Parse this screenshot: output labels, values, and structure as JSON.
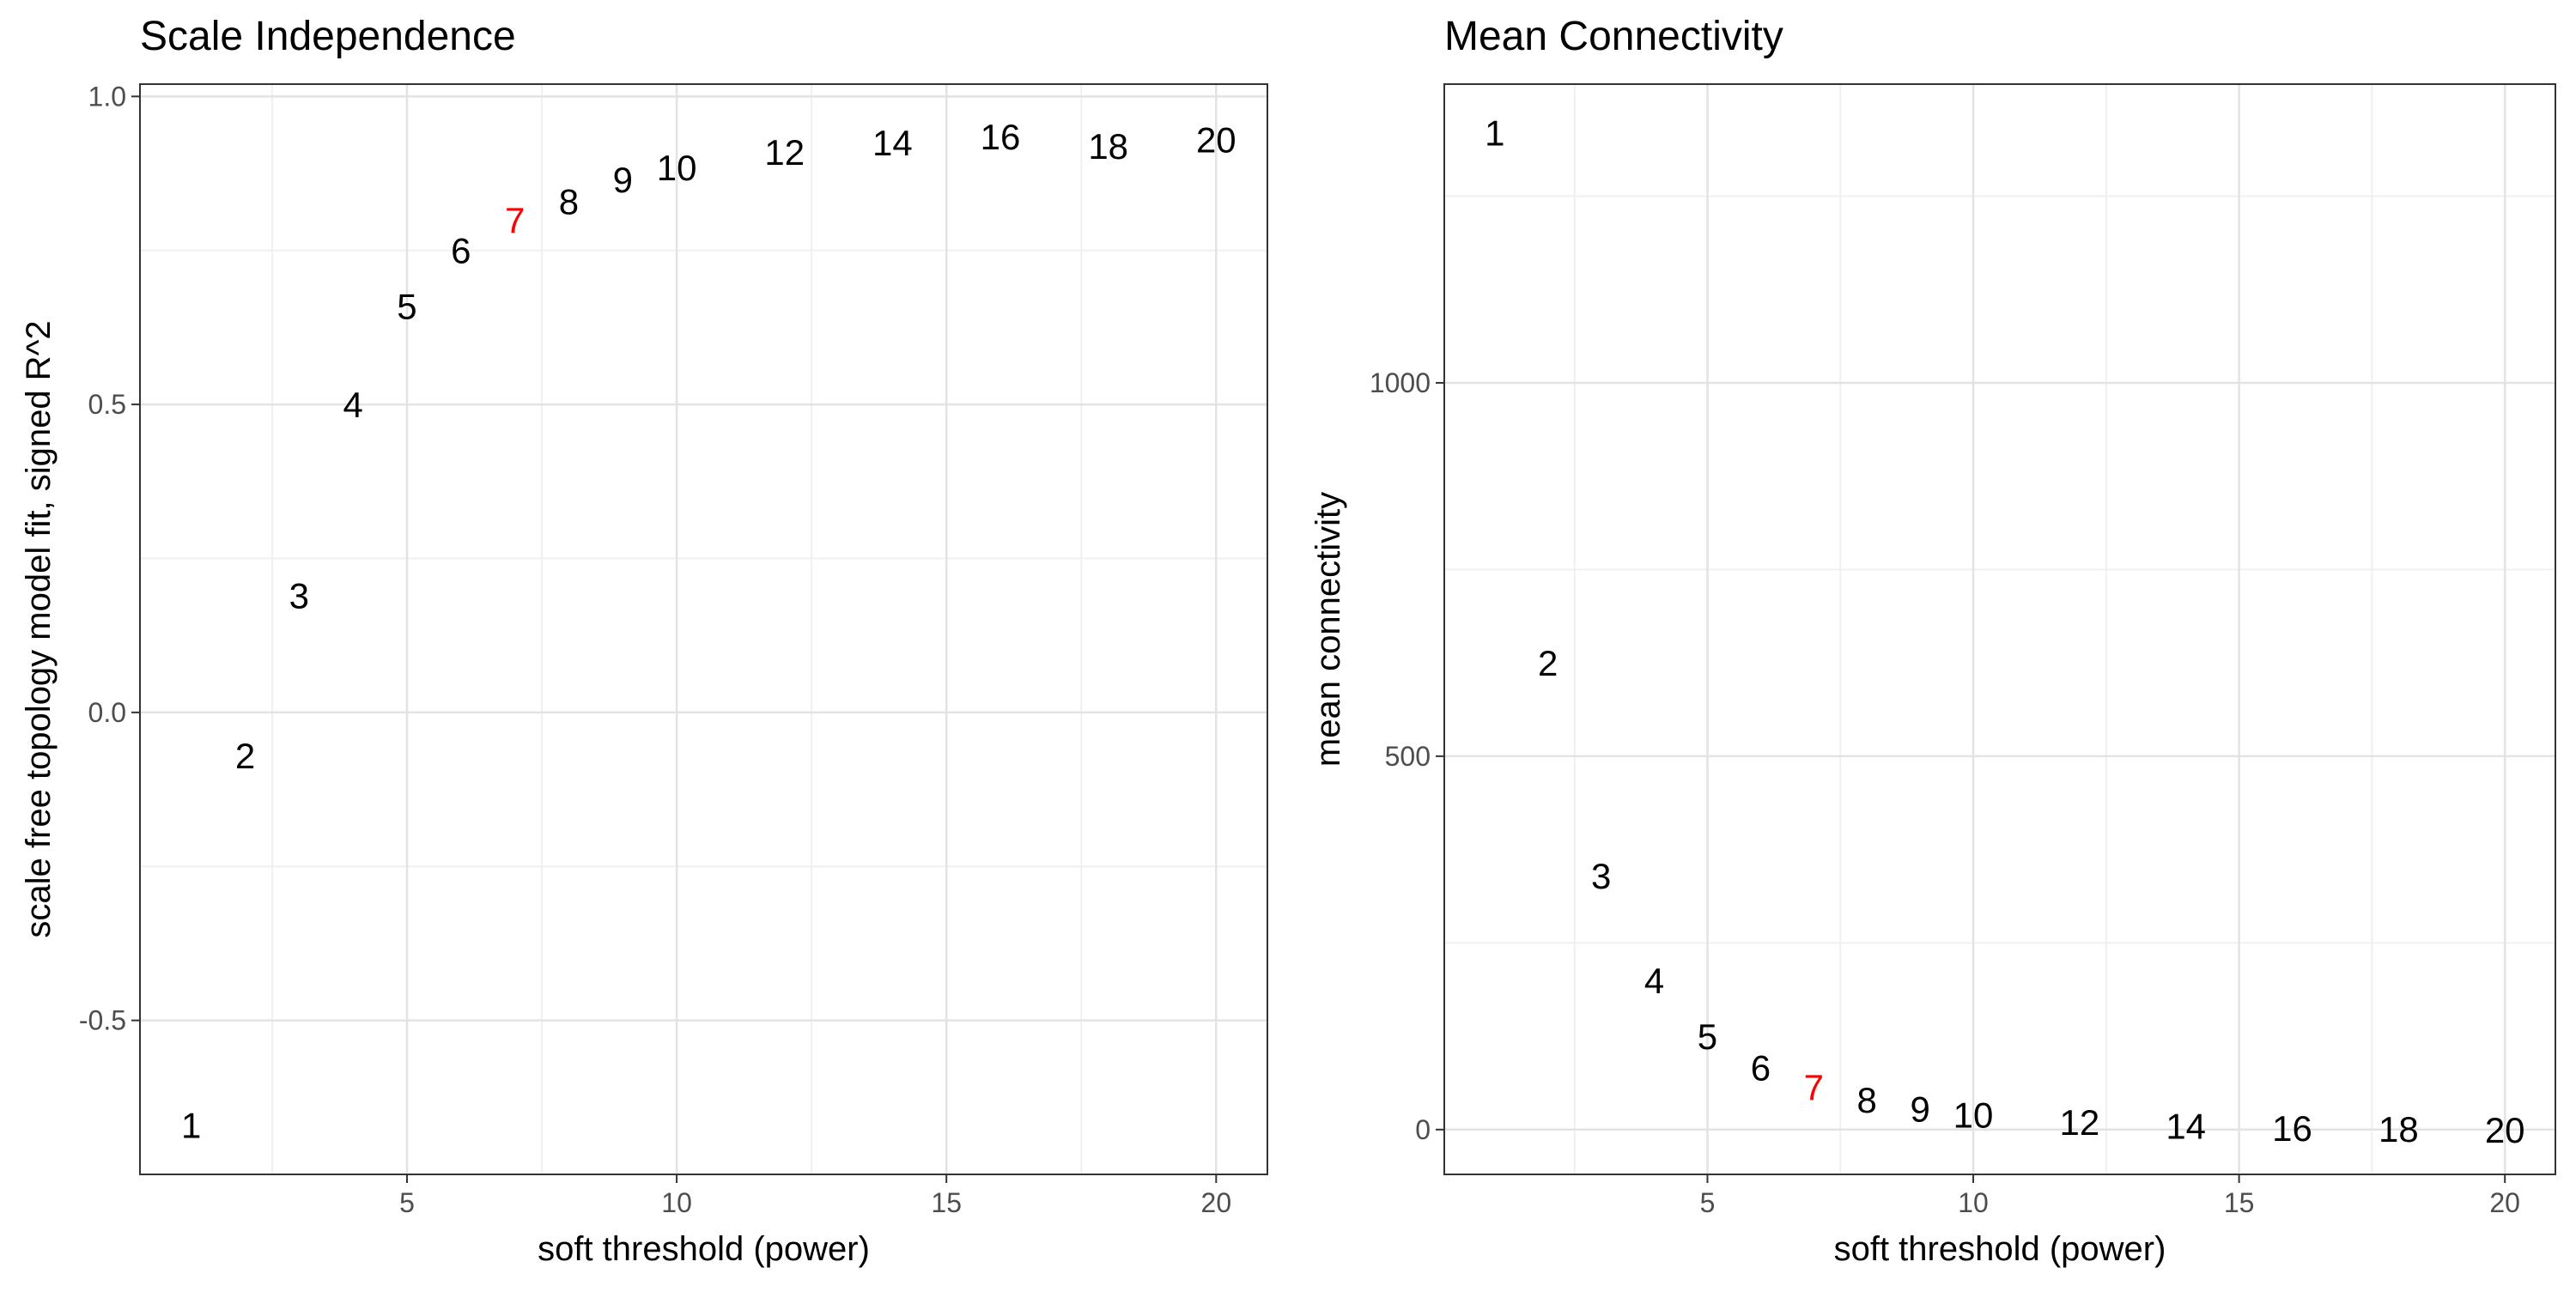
{
  "chart_data": [
    {
      "type": "scatter",
      "title": "Scale Independence",
      "xlabel": "soft threshold (power)",
      "ylabel": "scale free topology model fit, signed R^2",
      "xlim": [
        0.05,
        20.95
      ],
      "ylim": [
        -0.75,
        1.02
      ],
      "xticks": [
        5,
        10,
        15,
        20
      ],
      "xtick_labels": [
        "5",
        "10",
        "15",
        "20"
      ],
      "yticks": [
        -0.5,
        0.0,
        0.5,
        1.0
      ],
      "ytick_labels": [
        "-0.5",
        "0.0",
        "0.5",
        "1.0"
      ],
      "grid": true,
      "highlight_color": "#ff0000",
      "point_color": "#000000",
      "points": [
        {
          "x": 1,
          "y": -0.67,
          "label": "1",
          "highlight": false
        },
        {
          "x": 2,
          "y": -0.07,
          "label": "2",
          "highlight": false
        },
        {
          "x": 3,
          "y": 0.19,
          "label": "3",
          "highlight": false
        },
        {
          "x": 4,
          "y": 0.5,
          "label": "4",
          "highlight": false
        },
        {
          "x": 5,
          "y": 0.66,
          "label": "5",
          "highlight": false
        },
        {
          "x": 6,
          "y": 0.75,
          "label": "6",
          "highlight": false
        },
        {
          "x": 7,
          "y": 0.8,
          "label": "7",
          "highlight": true
        },
        {
          "x": 8,
          "y": 0.83,
          "label": "8",
          "highlight": false
        },
        {
          "x": 9,
          "y": 0.865,
          "label": "9",
          "highlight": false
        },
        {
          "x": 10,
          "y": 0.885,
          "label": "10",
          "highlight": false
        },
        {
          "x": 12,
          "y": 0.91,
          "label": "12",
          "highlight": false
        },
        {
          "x": 14,
          "y": 0.925,
          "label": "14",
          "highlight": false
        },
        {
          "x": 16,
          "y": 0.935,
          "label": "16",
          "highlight": false
        },
        {
          "x": 18,
          "y": 0.92,
          "label": "18",
          "highlight": false
        },
        {
          "x": 20,
          "y": 0.93,
          "label": "20",
          "highlight": false
        }
      ]
    },
    {
      "type": "scatter",
      "title": "Mean Connectivity",
      "xlabel": "soft threshold (power)",
      "ylabel": "mean connectivity",
      "xlim": [
        0.05,
        20.95
      ],
      "ylim": [
        -60,
        1400
      ],
      "xticks": [
        5,
        10,
        15,
        20
      ],
      "xtick_labels": [
        "5",
        "10",
        "15",
        "20"
      ],
      "yticks": [
        0,
        500,
        1000
      ],
      "ytick_labels": [
        "0",
        "500",
        "1000"
      ],
      "grid": true,
      "highlight_color": "#ff0000",
      "point_color": "#000000",
      "points": [
        {
          "x": 1,
          "y": 1335,
          "label": "1",
          "highlight": false
        },
        {
          "x": 2,
          "y": 625,
          "label": "2",
          "highlight": false
        },
        {
          "x": 3,
          "y": 340,
          "label": "3",
          "highlight": false
        },
        {
          "x": 4,
          "y": 200,
          "label": "4",
          "highlight": false
        },
        {
          "x": 5,
          "y": 125,
          "label": "5",
          "highlight": false
        },
        {
          "x": 6,
          "y": 83,
          "label": "6",
          "highlight": false
        },
        {
          "x": 7,
          "y": 57,
          "label": "7",
          "highlight": true
        },
        {
          "x": 8,
          "y": 40,
          "label": "8",
          "highlight": false
        },
        {
          "x": 9,
          "y": 28,
          "label": "9",
          "highlight": false
        },
        {
          "x": 10,
          "y": 20,
          "label": "10",
          "highlight": false
        },
        {
          "x": 12,
          "y": 10,
          "label": "12",
          "highlight": false
        },
        {
          "x": 14,
          "y": 5,
          "label": "14",
          "highlight": false
        },
        {
          "x": 16,
          "y": 2,
          "label": "16",
          "highlight": false
        },
        {
          "x": 18,
          "y": 1,
          "label": "18",
          "highlight": false
        },
        {
          "x": 20,
          "y": 0,
          "label": "20",
          "highlight": false
        }
      ]
    }
  ]
}
